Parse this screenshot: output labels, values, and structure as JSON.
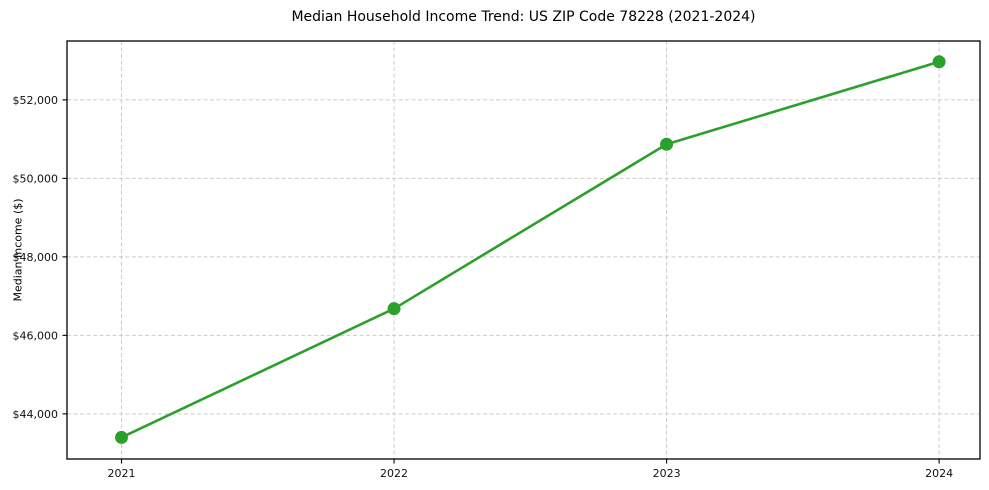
{
  "chart_data": {
    "type": "line",
    "title": "Median Household Income Trend: US ZIP Code 78228 (2021-2024)",
    "xlabel": "",
    "ylabel": "Median Income ($)",
    "x": [
      2021,
      2022,
      2023,
      2024
    ],
    "x_labels": [
      "2021",
      "2022",
      "2023",
      "2024"
    ],
    "series": [
      {
        "name": "Median Household Income",
        "values": [
          43400,
          46680,
          50870,
          52970
        ]
      }
    ],
    "yticks": [
      44000,
      46000,
      48000,
      50000,
      52000
    ],
    "ytick_labels": [
      "$44,000",
      "$46,000",
      "$48,000",
      "$50,000",
      "$52,000"
    ],
    "xlim": [
      2020.8,
      2024.15
    ],
    "ylim": [
      42850,
      53500
    ],
    "grid": true,
    "legend": "none",
    "colors": {
      "line": "#2ca02c",
      "marker": "#2ca02c",
      "grid": "#cccccc",
      "spine": "#000000",
      "tick_text": "#111111",
      "background": "#ffffff"
    }
  }
}
